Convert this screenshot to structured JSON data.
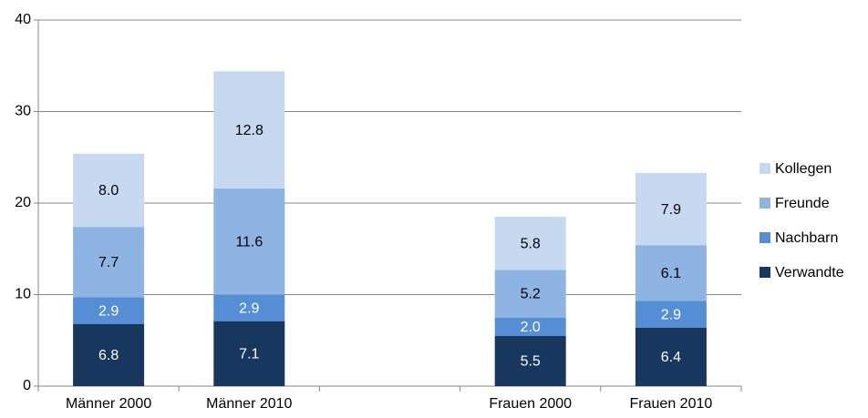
{
  "chart_data": {
    "type": "stacked_bar",
    "categories": [
      "Männer 2000",
      "Männer 2010",
      null,
      "Frauen 2000",
      "Frauen 2010"
    ],
    "series": [
      {
        "name": "Verwandte",
        "color": "#17375e",
        "values": [
          6.8,
          7.1,
          null,
          5.5,
          6.4
        ],
        "value_labels": [
          "6.8",
          "7.1",
          null,
          "5.5",
          "6.4"
        ]
      },
      {
        "name": "Nachbarn",
        "color": "#558ed5",
        "values": [
          2.9,
          2.9,
          null,
          2.0,
          2.9
        ],
        "value_labels": [
          "2.9",
          "2.9",
          null,
          "2.0",
          "2.9"
        ]
      },
      {
        "name": "Freunde",
        "color": "#8eb4e3",
        "values": [
          7.7,
          11.6,
          null,
          5.2,
          6.1
        ],
        "value_labels": [
          "7.7",
          "11.6",
          null,
          "5.2",
          "6.1"
        ]
      },
      {
        "name": "Kollegen",
        "color": "#c6d9f1",
        "values": [
          8.0,
          12.8,
          null,
          5.8,
          7.9
        ],
        "value_labels": [
          "8.0",
          "12.8",
          null,
          "5.8",
          "7.9"
        ]
      }
    ],
    "ylim": [
      0,
      40
    ],
    "yticks": [
      0,
      10,
      20,
      30,
      40
    ],
    "grid": true,
    "legend": "right"
  }
}
